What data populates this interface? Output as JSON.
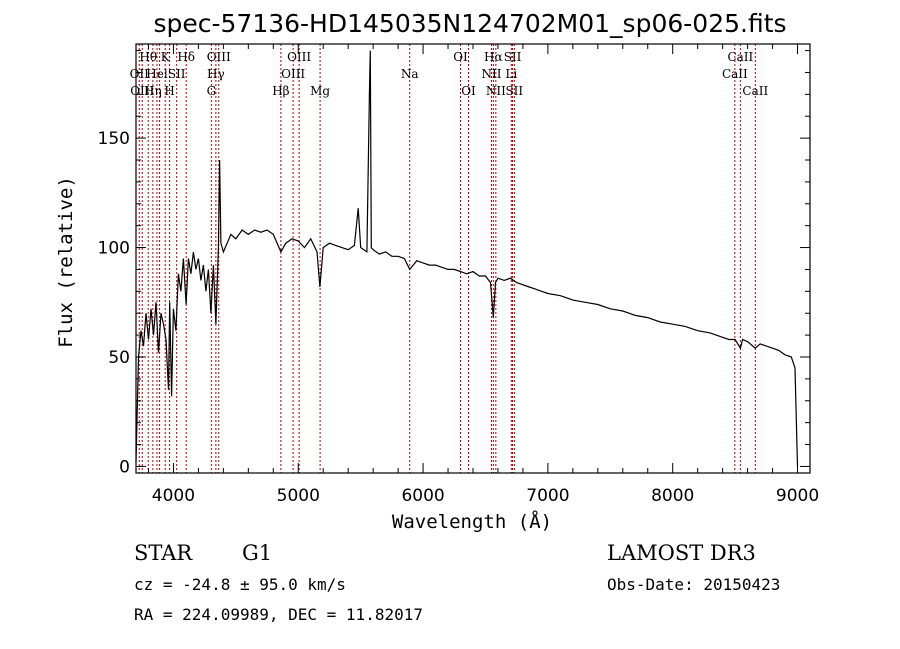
{
  "chart_data": {
    "type": "line",
    "title": "spec-57136-HD145035N124702M01_sp06-025.fits",
    "xlabel": "Wavelength (Å)",
    "ylabel": "Flux (relative)",
    "xlim": [
      3700,
      9100
    ],
    "ylim": [
      -3,
      193
    ],
    "xticks": [
      4000,
      5000,
      6000,
      7000,
      8000,
      9000
    ],
    "yticks": [
      0,
      50,
      100,
      150
    ],
    "series": [
      {
        "name": "flux",
        "points": [
          [
            3700,
            2
          ],
          [
            3710,
            25
          ],
          [
            3720,
            50
          ],
          [
            3740,
            62
          ],
          [
            3760,
            55
          ],
          [
            3780,
            70
          ],
          [
            3800,
            58
          ],
          [
            3820,
            72
          ],
          [
            3840,
            60
          ],
          [
            3860,
            75
          ],
          [
            3880,
            52
          ],
          [
            3900,
            70
          ],
          [
            3920,
            65
          ],
          [
            3940,
            58
          ],
          [
            3960,
            35
          ],
          [
            3970,
            75
          ],
          [
            3985,
            32
          ],
          [
            4000,
            72
          ],
          [
            4020,
            62
          ],
          [
            4040,
            88
          ],
          [
            4060,
            80
          ],
          [
            4080,
            95
          ],
          [
            4101,
            74
          ],
          [
            4120,
            95
          ],
          [
            4140,
            88
          ],
          [
            4160,
            98
          ],
          [
            4180,
            90
          ],
          [
            4200,
            95
          ],
          [
            4220,
            85
          ],
          [
            4240,
            92
          ],
          [
            4260,
            80
          ],
          [
            4280,
            90
          ],
          [
            4300,
            70
          ],
          [
            4320,
            92
          ],
          [
            4340,
            65
          ],
          [
            4360,
            100
          ],
          [
            4370,
            140
          ],
          [
            4380,
            102
          ],
          [
            4400,
            98
          ],
          [
            4430,
            102
          ],
          [
            4460,
            106
          ],
          [
            4500,
            104
          ],
          [
            4550,
            108
          ],
          [
            4600,
            106
          ],
          [
            4650,
            108
          ],
          [
            4700,
            107
          ],
          [
            4750,
            108
          ],
          [
            4800,
            106
          ],
          [
            4861,
            98
          ],
          [
            4900,
            102
          ],
          [
            4950,
            104
          ],
          [
            5000,
            103
          ],
          [
            5050,
            100
          ],
          [
            5100,
            104
          ],
          [
            5150,
            98
          ],
          [
            5173,
            82
          ],
          [
            5200,
            100
          ],
          [
            5250,
            102
          ],
          [
            5300,
            101
          ],
          [
            5350,
            100
          ],
          [
            5400,
            99
          ],
          [
            5450,
            101
          ],
          [
            5480,
            118
          ],
          [
            5500,
            100
          ],
          [
            5550,
            98
          ],
          [
            5570,
            170
          ],
          [
            5577,
            190
          ],
          [
            5585,
            100
          ],
          [
            5600,
            99
          ],
          [
            5650,
            97
          ],
          [
            5700,
            98
          ],
          [
            5750,
            96
          ],
          [
            5800,
            96
          ],
          [
            5850,
            95
          ],
          [
            5893,
            90
          ],
          [
            5950,
            94
          ],
          [
            6000,
            93
          ],
          [
            6050,
            92
          ],
          [
            6100,
            92
          ],
          [
            6150,
            91
          ],
          [
            6200,
            90
          ],
          [
            6250,
            90
          ],
          [
            6300,
            89
          ],
          [
            6350,
            88
          ],
          [
            6400,
            89
          ],
          [
            6450,
            87
          ],
          [
            6500,
            87
          ],
          [
            6540,
            84
          ],
          [
            6563,
            68
          ],
          [
            6580,
            84
          ],
          [
            6600,
            86
          ],
          [
            6650,
            85
          ],
          [
            6700,
            86
          ],
          [
            6750,
            84
          ],
          [
            6800,
            83
          ],
          [
            6850,
            82
          ],
          [
            6900,
            81
          ],
          [
            6950,
            80
          ],
          [
            7000,
            79
          ],
          [
            7100,
            78
          ],
          [
            7200,
            76
          ],
          [
            7300,
            75
          ],
          [
            7400,
            74
          ],
          [
            7500,
            72
          ],
          [
            7600,
            71
          ],
          [
            7700,
            69
          ],
          [
            7800,
            68
          ],
          [
            7900,
            66
          ],
          [
            8000,
            65
          ],
          [
            8100,
            64
          ],
          [
            8200,
            62
          ],
          [
            8300,
            61
          ],
          [
            8400,
            59
          ],
          [
            8450,
            58
          ],
          [
            8500,
            58
          ],
          [
            8542,
            54
          ],
          [
            8560,
            58
          ],
          [
            8600,
            57
          ],
          [
            8662,
            54
          ],
          [
            8700,
            56
          ],
          [
            8750,
            55
          ],
          [
            8800,
            54
          ],
          [
            8850,
            53
          ],
          [
            8900,
            51
          ],
          [
            8950,
            50
          ],
          [
            8980,
            45
          ],
          [
            9000,
            0
          ]
        ]
      }
    ],
    "lines": [
      {
        "wl": 3726,
        "label": "OII",
        "row": 2
      },
      {
        "wl": 3750,
        "label": "OIII",
        "row": 3
      },
      {
        "wl": 3798,
        "label": "Hθ",
        "row": 1
      },
      {
        "wl": 3835,
        "label": "Hη",
        "row": 3
      },
      {
        "wl": 3868,
        "label": "Hel",
        "row": 2
      },
      {
        "wl": 3889,
        "label": "",
        "row": 0
      },
      {
        "wl": 3934,
        "label": "K",
        "row": 1
      },
      {
        "wl": 3969,
        "label": "H",
        "row": 3
      },
      {
        "wl": 4026,
        "label": "SII",
        "row": 2
      },
      {
        "wl": 4102,
        "label": "Hδ",
        "row": 1
      },
      {
        "wl": 4304,
        "label": "G",
        "row": 3
      },
      {
        "wl": 4340,
        "label": "Hγ",
        "row": 2
      },
      {
        "wl": 4363,
        "label": "OIII",
        "row": 1
      },
      {
        "wl": 4861,
        "label": "Hβ",
        "row": 3
      },
      {
        "wl": 4959,
        "label": "OIII",
        "row": 2
      },
      {
        "wl": 5007,
        "label": "OIII",
        "row": 1
      },
      {
        "wl": 5175,
        "label": "Mg",
        "row": 3
      },
      {
        "wl": 5893,
        "label": "Na",
        "row": 2
      },
      {
        "wl": 6300,
        "label": "OI",
        "row": 1
      },
      {
        "wl": 6364,
        "label": "OI",
        "row": 3
      },
      {
        "wl": 6548,
        "label": "NII",
        "row": 2
      },
      {
        "wl": 6563,
        "label": "Hα",
        "row": 1
      },
      {
        "wl": 6583,
        "label": "NII",
        "row": 3
      },
      {
        "wl": 6707,
        "label": "Li",
        "row": 2
      },
      {
        "wl": 6717,
        "label": "SII",
        "row": 1
      },
      {
        "wl": 6731,
        "label": "SII",
        "row": 3
      },
      {
        "wl": 8498,
        "label": "CaII",
        "row": 2
      },
      {
        "wl": 8542,
        "label": "CaII",
        "row": 1
      },
      {
        "wl": 8662,
        "label": "CaII",
        "row": 3
      }
    ]
  },
  "info": {
    "class": "STAR",
    "subclass": "G1",
    "survey": "LAMOST DR3",
    "cz": "cz = -24.8 ± 95.0 km/s",
    "obs_date": "Obs-Date: 20150423",
    "radec": "RA = 224.09989, DEC =  11.82017"
  }
}
